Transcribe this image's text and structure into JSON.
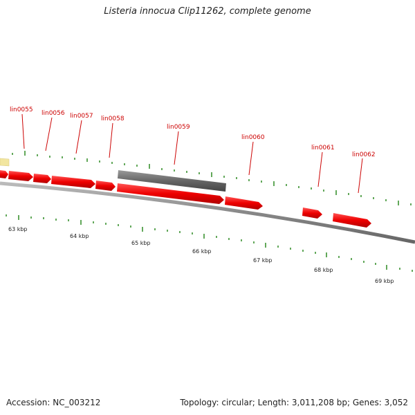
{
  "title": "Listeria innocua Clip11262, complete genome",
  "footer": {
    "accession": "Accession: NC_003212",
    "summary": "Topology: circular; Length: 3,011,208 bp; Genes: 3,052"
  },
  "colors": {
    "gene_forward": "#ee0000",
    "gene_highlight": "#666666",
    "backbone": "#888888",
    "tick": "#2e8b22",
    "label": "#cc0000",
    "partial_feature": "#f2e6a0"
  },
  "gene_labels": [
    "lin0055",
    "lin0056",
    "lin0057",
    "lin0058",
    "lin0059",
    "lin0060",
    "lin0061",
    "lin0062"
  ],
  "kbp_labels": [
    "63 kbp",
    "64 kbp",
    "65 kbp",
    "66 kbp",
    "67 kbp",
    "68 kbp",
    "69 kbp"
  ]
}
